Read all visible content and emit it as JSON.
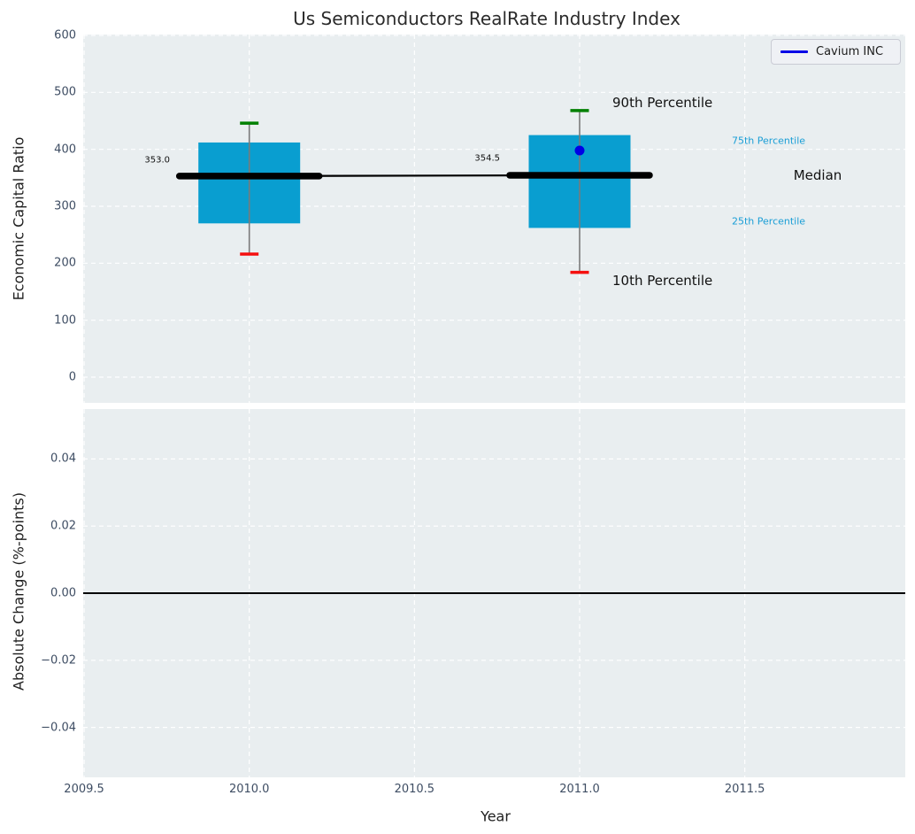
{
  "title": "Us Semiconductors RealRate Industry Index",
  "legend": {
    "label": "Cavium INC"
  },
  "colors": {
    "box_fill": "#099ed0",
    "whisker": "#7a7a7a",
    "cap_90th": "#008000",
    "cap_10th": "#f50f0f",
    "median_line": "#000000",
    "company_marker": "#0000e6",
    "plot_background": "#e9eef0",
    "grid": "#ffffff",
    "percentile_label_cyan": "#1a9ed6",
    "zero_line": "#000000"
  },
  "top_plot": {
    "ylabel": "Economic Capital Ratio",
    "yticks": [
      {
        "v": 600,
        "label": "600"
      },
      {
        "v": 500,
        "label": "500"
      },
      {
        "v": 400,
        "label": "400"
      },
      {
        "v": 300,
        "label": "300"
      },
      {
        "v": 200,
        "label": "200"
      },
      {
        "v": 100,
        "label": "100"
      },
      {
        "v": 0,
        "label": "0"
      }
    ],
    "annotations": {
      "p90": "90th Percentile",
      "p75": "75th Percentile",
      "median": "Median",
      "p25": "25th Percentile",
      "p10": "10th Percentile",
      "median_value_2010": "353.0",
      "median_value_2011": "354.5"
    }
  },
  "bottom_plot": {
    "ylabel": "Absolute Change (%-points)",
    "yticks": [
      {
        "v": 0.04,
        "label": "0.04"
      },
      {
        "v": 0.02,
        "label": "0.02"
      },
      {
        "v": 0.0,
        "label": "0.00"
      },
      {
        "v": -0.02,
        "label": "−0.02"
      },
      {
        "v": -0.04,
        "label": "−0.04"
      }
    ]
  },
  "xaxis": {
    "label": "Year",
    "ticks": [
      {
        "v": 2009.5,
        "label": "2009.5"
      },
      {
        "v": 2010.0,
        "label": "2010.0"
      },
      {
        "v": 2010.5,
        "label": "2010.5"
      },
      {
        "v": 2011.0,
        "label": "2011.0"
      },
      {
        "v": 2011.5,
        "label": "2011.5"
      }
    ]
  },
  "chart_data": {
    "type": "box",
    "title": "Us Semiconductors RealRate Industry Index",
    "xlabel": "Year",
    "x_range": [
      2009.5,
      2012.0
    ],
    "grid": "white-dashed",
    "legend_position": "upper right",
    "subplots": [
      {
        "ylabel": "Economic Capital Ratio",
        "ylim": [
          -50,
          620
        ],
        "boxes": [
          {
            "x": 2010,
            "p10": 216,
            "p25": 270,
            "median": 353.0,
            "p75": 412,
            "p90": 446,
            "median_label": "353.0"
          },
          {
            "x": 2011,
            "p10": 184,
            "p25": 262,
            "median": 354.5,
            "p75": 425,
            "p90": 468,
            "median_label": "354.5"
          }
        ],
        "median_trend": [
          {
            "x": 2010,
            "y": 353.0
          },
          {
            "x": 2011,
            "y": 354.5
          }
        ],
        "series": [
          {
            "name": "Cavium INC",
            "type": "scatter",
            "points": [
              {
                "x": 2011,
                "y": 398
              }
            ]
          }
        ]
      },
      {
        "ylabel": "Absolute Change (%-points)",
        "ylim": [
          -0.055,
          0.055
        ],
        "zero_line": 0.0,
        "series": []
      }
    ]
  }
}
